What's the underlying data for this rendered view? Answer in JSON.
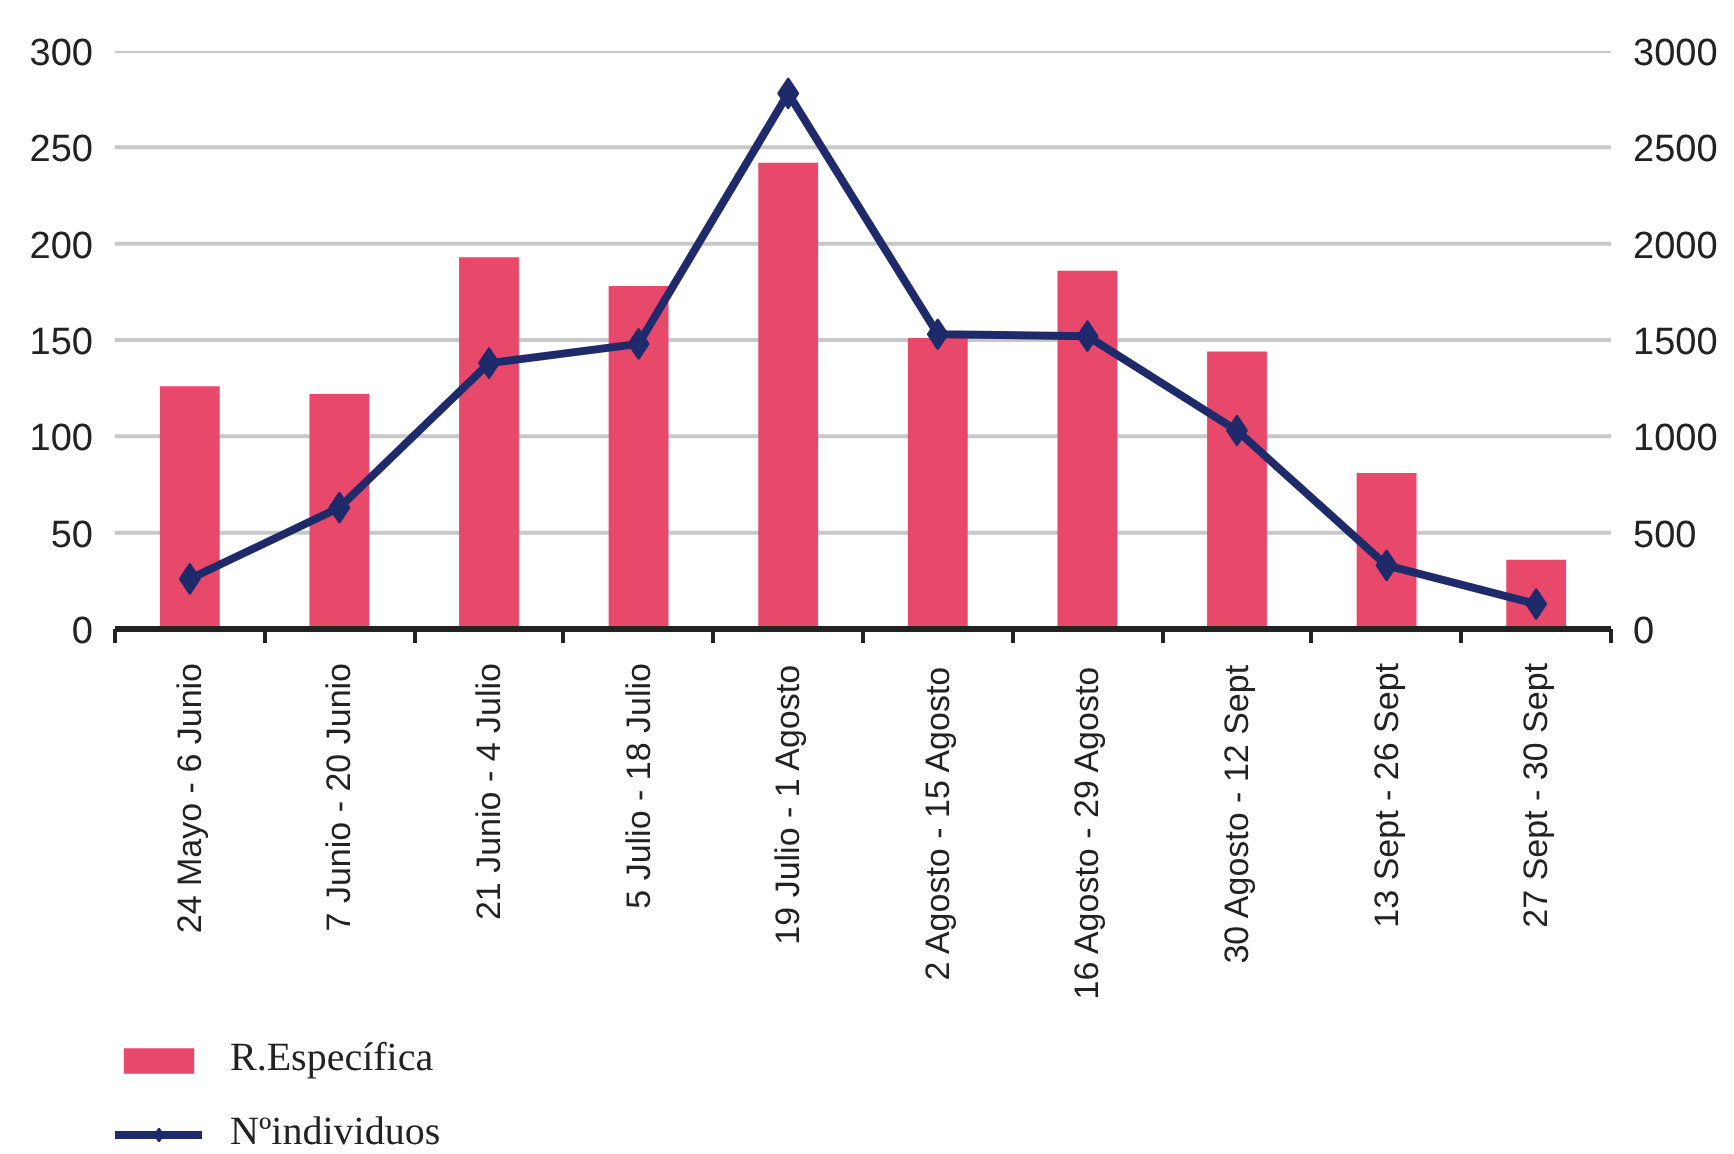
{
  "chart_data": {
    "type": "bar",
    "categories": [
      "24 Mayo - 6 Junio",
      "7 Junio - 20 Junio",
      "21 Junio - 4 Julio",
      "5 Julio - 18 Julio",
      "19 Julio - 1 Agosto",
      "2 Agosto - 15 Agosto",
      "16 Agosto - 29 Agosto",
      "30 Agosto - 12 Sept",
      "13 Sept - 26 Sept",
      "27 Sept - 30 Sept"
    ],
    "series": [
      {
        "name": "R.Específica",
        "type": "bar",
        "color": "#e8496b",
        "values": [
          126,
          122,
          193,
          178,
          242,
          151,
          186,
          144,
          81,
          36
        ]
      },
      {
        "name": "Nºindividuos",
        "type": "line",
        "axis": "y2",
        "color": "#1f2a6b",
        "values": [
          260,
          630,
          1380,
          1480,
          2780,
          1530,
          1520,
          1030,
          330,
          130
        ]
      }
    ],
    "ylim": [
      0,
      300
    ],
    "yticks": [
      0,
      50,
      100,
      150,
      200,
      250,
      300
    ],
    "y2lim": [
      0,
      3000
    ],
    "y2ticks": [
      0,
      500,
      1000,
      1500,
      2000,
      2500,
      3000
    ],
    "grid": "y",
    "legend": "bottom",
    "marker": "diamond"
  }
}
